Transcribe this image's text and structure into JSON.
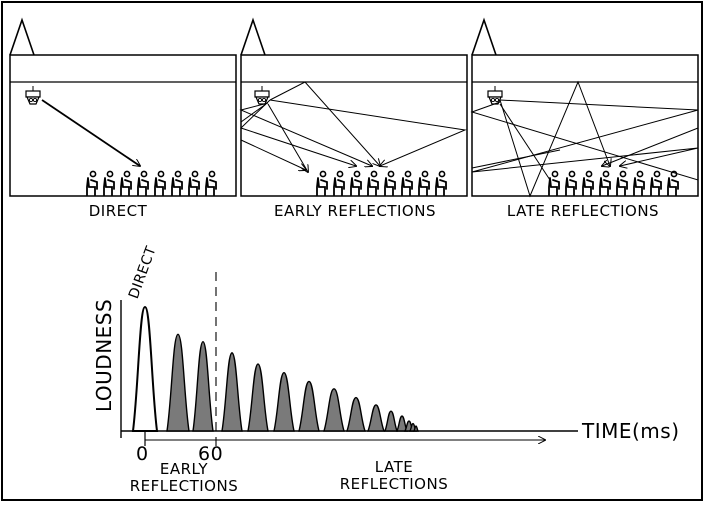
{
  "panels": [
    {
      "id": "direct",
      "label": "DIRECT"
    },
    {
      "id": "early",
      "label": "EARLY REFLECTIONS"
    },
    {
      "id": "late",
      "label": "LATE REFLECTIONS"
    }
  ],
  "graph": {
    "ylabel": "LOUDNESS",
    "xlabel": "TIME(ms)",
    "peak_label": "DIRECT",
    "ticks": [
      "0",
      "60"
    ],
    "regions": {
      "early": [
        "EARLY",
        "REFLECTIONS"
      ],
      "late": [
        "LATE",
        "REFLECTIONS"
      ]
    }
  },
  "chart_data": {
    "type": "area",
    "xlabel": "TIME(ms)",
    "ylabel": "LOUDNESS",
    "pulses": [
      {
        "kind": "direct",
        "relative_height": 1.0
      },
      {
        "kind": "early",
        "relative_height": 0.78
      },
      {
        "kind": "early",
        "relative_height": 0.72
      },
      {
        "kind": "early",
        "relative_height": 0.63
      },
      {
        "kind": "late",
        "relative_height": 0.54
      },
      {
        "kind": "late",
        "relative_height": 0.47
      },
      {
        "kind": "late",
        "relative_height": 0.4
      },
      {
        "kind": "late",
        "relative_height": 0.34
      },
      {
        "kind": "late",
        "relative_height": 0.27
      },
      {
        "kind": "late",
        "relative_height": 0.21
      },
      {
        "kind": "late",
        "relative_height": 0.16
      },
      {
        "kind": "late",
        "relative_height": 0.12
      },
      {
        "kind": "late",
        "relative_height": 0.08
      },
      {
        "kind": "late",
        "relative_height": 0.06
      },
      {
        "kind": "late",
        "relative_height": 0.04
      }
    ],
    "fill_colors": {
      "direct": "#ffffff",
      "reflection": "#7a7a7a"
    }
  }
}
